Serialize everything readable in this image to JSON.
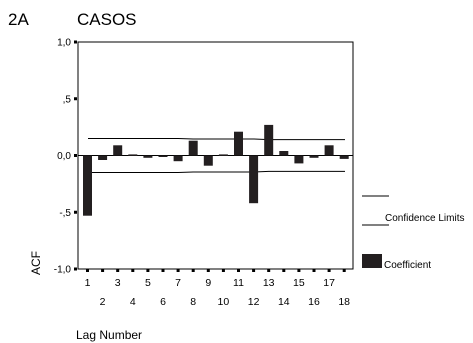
{
  "chart_data": {
    "type": "bar",
    "panel_label": "2A",
    "title": "CASOS",
    "xlabel": "Lag Number",
    "ylabel": "ACF",
    "ylim": [
      -1.0,
      1.0
    ],
    "yticks": [
      "1,0",
      ",5",
      "0,0",
      "-,5",
      "-1,0"
    ],
    "ytick_values": [
      1.0,
      0.5,
      0.0,
      -0.5,
      -1.0
    ],
    "x": [
      1,
      2,
      3,
      4,
      5,
      6,
      7,
      8,
      9,
      10,
      11,
      12,
      13,
      14,
      15,
      16,
      17,
      18
    ],
    "values": [
      -0.53,
      -0.04,
      0.09,
      0.01,
      -0.02,
      -0.01,
      -0.05,
      0.13,
      -0.09,
      0.01,
      0.21,
      -0.42,
      0.27,
      0.04,
      -0.07,
      -0.02,
      0.09,
      -0.03
    ],
    "confidence_limits": [
      [
        0.15,
        0.15,
        0.15,
        0.15,
        0.15,
        0.15,
        0.15,
        0.145,
        0.145,
        0.145,
        0.145,
        0.145,
        0.14,
        0.14,
        0.14,
        0.14,
        0.14,
        0.14
      ],
      [
        -0.15,
        -0.15,
        -0.15,
        -0.15,
        -0.15,
        -0.15,
        -0.15,
        -0.145,
        -0.145,
        -0.145,
        -0.145,
        -0.145,
        -0.14,
        -0.14,
        -0.14,
        -0.14,
        -0.14,
        -0.14
      ]
    ],
    "grid": false,
    "legend_position": "right",
    "legend": {
      "confidence_label": "Confidence Limits",
      "coefficient_label": "Coefficient"
    },
    "bar_color": "#231f20",
    "line_color": "#000000"
  }
}
